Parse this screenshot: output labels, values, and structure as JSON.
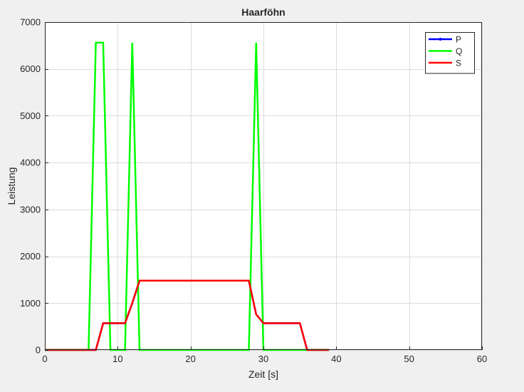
{
  "figure": {
    "background": "#f0f0f0"
  },
  "chart_data": {
    "type": "line",
    "title": "Haarföhn",
    "xlabel": "Zeit [s]",
    "ylabel": "Leistung",
    "xlim": [
      0,
      60
    ],
    "ylim": [
      0,
      7000
    ],
    "xticks": [
      0,
      10,
      20,
      30,
      40,
      50,
      60
    ],
    "yticks": [
      0,
      1000,
      2000,
      3000,
      4000,
      5000,
      6000,
      7000
    ],
    "grid": true,
    "legend_position": "top-right",
    "series": [
      {
        "name": "P",
        "color": "#0000ff",
        "marker": "dot",
        "x": [
          0,
          1,
          2,
          3,
          4,
          5,
          6,
          7,
          8,
          9,
          10,
          11,
          12,
          13,
          14,
          15,
          16,
          17,
          18,
          19,
          20,
          21,
          22,
          23,
          24,
          25,
          26,
          27,
          28,
          29,
          30,
          31,
          32,
          33,
          34,
          35,
          36,
          37,
          38,
          39
        ],
        "y": [
          0,
          0,
          0,
          0,
          0,
          0,
          0,
          0,
          570,
          570,
          570,
          570,
          1000,
          1480,
          1480,
          1480,
          1480,
          1480,
          1480,
          1480,
          1480,
          1480,
          1480,
          1480,
          1480,
          1480,
          1480,
          1480,
          1480,
          760,
          570,
          570,
          570,
          570,
          570,
          570,
          0,
          0,
          0,
          0
        ]
      },
      {
        "name": "Q",
        "color": "#00ff00",
        "marker": "none",
        "x": [
          0,
          6,
          7,
          8,
          9,
          10,
          11,
          12,
          13,
          14,
          27,
          28,
          29,
          30,
          31,
          39
        ],
        "y": [
          0,
          0,
          6560,
          6560,
          0,
          0,
          0,
          6560,
          0,
          0,
          0,
          0,
          6560,
          0,
          0,
          0
        ]
      },
      {
        "name": "S",
        "color": "#ff0000",
        "marker": "none",
        "x": [
          0,
          1,
          2,
          3,
          4,
          5,
          6,
          7,
          8,
          9,
          10,
          11,
          12,
          13,
          14,
          15,
          16,
          17,
          18,
          19,
          20,
          21,
          22,
          23,
          24,
          25,
          26,
          27,
          28,
          29,
          30,
          31,
          32,
          33,
          34,
          35,
          36,
          37,
          38,
          39
        ],
        "y": [
          0,
          0,
          0,
          0,
          0,
          0,
          0,
          0,
          570,
          570,
          570,
          570,
          1000,
          1480,
          1480,
          1480,
          1480,
          1480,
          1480,
          1480,
          1480,
          1480,
          1480,
          1480,
          1480,
          1480,
          1480,
          1480,
          1480,
          760,
          570,
          570,
          570,
          570,
          570,
          570,
          0,
          0,
          0,
          0
        ]
      }
    ]
  }
}
